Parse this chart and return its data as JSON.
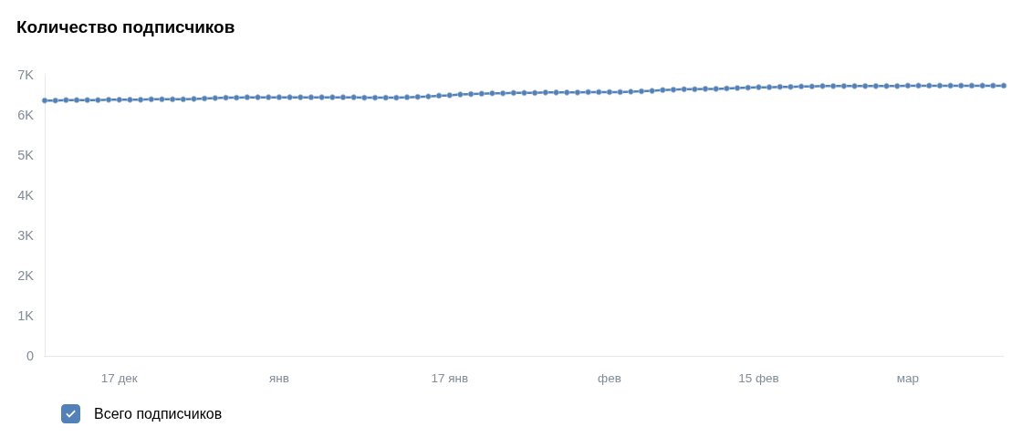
{
  "chart_data": {
    "type": "line",
    "title": "Количество подписчиков",
    "categories": [
      null,
      null,
      null,
      null,
      null,
      null,
      null,
      "17 дек",
      null,
      null,
      null,
      null,
      null,
      null,
      null,
      null,
      null,
      null,
      null,
      null,
      null,
      null,
      "янв",
      null,
      null,
      null,
      null,
      null,
      null,
      null,
      null,
      null,
      null,
      null,
      null,
      null,
      null,
      null,
      "17 янв",
      null,
      null,
      null,
      null,
      null,
      null,
      null,
      null,
      null,
      null,
      null,
      null,
      null,
      null,
      "фев",
      null,
      null,
      null,
      null,
      null,
      null,
      null,
      null,
      null,
      null,
      null,
      null,
      null,
      "15 фев",
      null,
      null,
      null,
      null,
      null,
      null,
      null,
      null,
      null,
      null,
      null,
      null,
      null,
      "мар",
      null,
      null,
      null,
      null,
      null,
      null,
      null,
      null,
      null
    ],
    "series": [
      {
        "name": "Всего подписчиков",
        "color": "#5181b8",
        "values": [
          6360,
          6360,
          6370,
          6370,
          6370,
          6370,
          6380,
          6380,
          6380,
          6380,
          6390,
          6390,
          6390,
          6390,
          6400,
          6410,
          6420,
          6430,
          6430,
          6440,
          6440,
          6440,
          6440,
          6440,
          6440,
          6440,
          6440,
          6440,
          6440,
          6440,
          6430,
          6430,
          6430,
          6430,
          6440,
          6450,
          6460,
          6480,
          6490,
          6510,
          6520,
          6530,
          6540,
          6540,
          6550,
          6550,
          6550,
          6560,
          6560,
          6560,
          6560,
          6570,
          6570,
          6570,
          6570,
          6580,
          6590,
          6600,
          6620,
          6630,
          6640,
          6640,
          6650,
          6650,
          6660,
          6670,
          6680,
          6690,
          6690,
          6700,
          6700,
          6710,
          6710,
          6720,
          6720,
          6720,
          6720,
          6720,
          6720,
          6720,
          6720,
          6730,
          6730,
          6730,
          6730,
          6730,
          6730,
          6730,
          6730,
          6730,
          6730
        ]
      }
    ],
    "ylim": [
      0,
      7000
    ],
    "yticks": [
      {
        "value": 0,
        "label": "0"
      },
      {
        "value": 1000,
        "label": "1K"
      },
      {
        "value": 2000,
        "label": "2K"
      },
      {
        "value": 3000,
        "label": "3K"
      },
      {
        "value": 4000,
        "label": "4K"
      },
      {
        "value": 5000,
        "label": "5K"
      },
      {
        "value": 6000,
        "label": "6K"
      },
      {
        "value": 7000,
        "label": "7K"
      }
    ],
    "grid": false,
    "legend": "bottom left",
    "marker": "circle",
    "line_style": "solid"
  }
}
